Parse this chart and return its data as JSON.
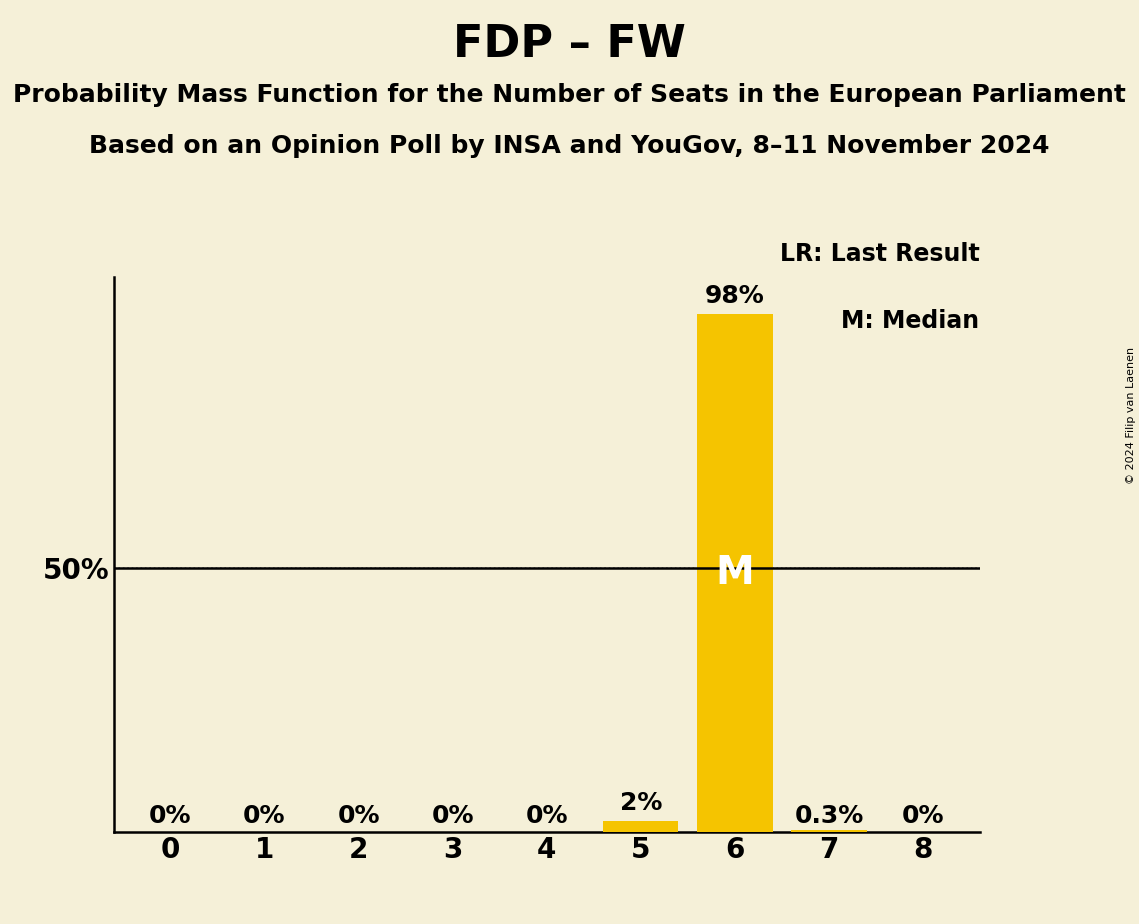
{
  "title": "FDP – FW",
  "subtitle1": "Probability Mass Function for the Number of Seats in the European Parliament",
  "subtitle2": "Based on an Opinion Poll by INSA and YouGov, 8–11 November 2024",
  "copyright": "© 2024 Filip van Laenen",
  "x_values": [
    0,
    1,
    2,
    3,
    4,
    5,
    6,
    7,
    8
  ],
  "y_values": [
    0.0,
    0.0,
    0.0,
    0.0,
    0.0,
    0.02,
    0.98,
    0.003,
    0.0
  ],
  "bar_labels": [
    "0%",
    "0%",
    "0%",
    "0%",
    "0%",
    "2%",
    "98%",
    "0.3%",
    "0%"
  ],
  "bar_color": "#F5C400",
  "background_color": "#F5F0D8",
  "median_seat": 6,
  "ylim": [
    0,
    1.05
  ],
  "legend_lr": "LR: Last Result",
  "legend_m": "M: Median",
  "title_fontsize": 32,
  "subtitle_fontsize": 18,
  "label_fontsize": 17,
  "tick_fontsize": 20,
  "bar_label_fontsize": 18,
  "median_label_fontsize": 28,
  "lr_label_fontsize": 22
}
